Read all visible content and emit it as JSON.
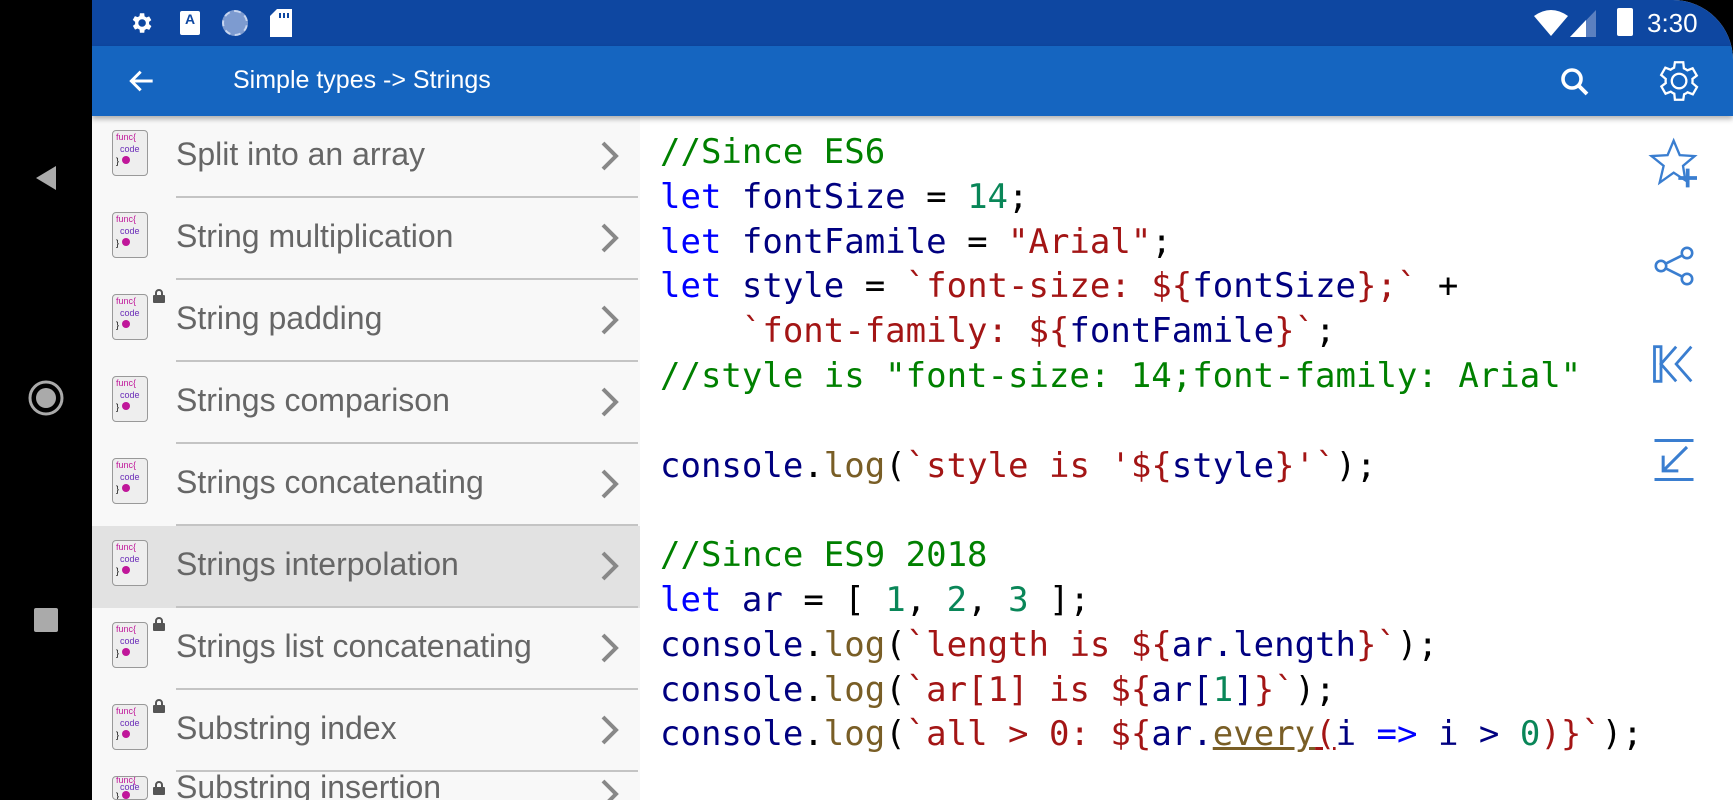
{
  "status_bar": {
    "time": "3:30",
    "icons": [
      "settings-icon",
      "text-a-icon",
      "sync-icon",
      "sd-card-icon",
      "wifi-icon",
      "signal-icon",
      "battery-icon"
    ]
  },
  "toolbar": {
    "title": "Simple types -> Strings",
    "icons": [
      "back-arrow-icon",
      "search-icon",
      "settings-gear-icon"
    ]
  },
  "list": {
    "items": [
      {
        "label": "Split into an array",
        "locked": false
      },
      {
        "label": "String multiplication",
        "locked": false
      },
      {
        "label": "String padding",
        "locked": true
      },
      {
        "label": "Strings comparison",
        "locked": false
      },
      {
        "label": "Strings concatenating",
        "locked": false
      },
      {
        "label": "Strings interpolation",
        "locked": false,
        "selected": true
      },
      {
        "label": "Strings list concatenating",
        "locked": true
      },
      {
        "label": "Substring index",
        "locked": true
      },
      {
        "label": "Substring insertion",
        "locked": true
      }
    ],
    "icon_text": {
      "l1": "func{",
      "l2": "code",
      "l3": "}"
    }
  },
  "code": {
    "lines": [
      [
        [
          "//Since ES6",
          "c"
        ]
      ],
      [
        [
          "let ",
          "k"
        ],
        [
          "fontSize",
          "v"
        ],
        [
          " = ",
          "p"
        ],
        [
          "14",
          "n"
        ],
        [
          ";",
          "p"
        ]
      ],
      [
        [
          "let ",
          "k"
        ],
        [
          "fontFamile",
          "v"
        ],
        [
          " = ",
          "p"
        ],
        [
          "\"Arial\"",
          "s"
        ],
        [
          ";",
          "p"
        ]
      ],
      [
        [
          "let ",
          "k"
        ],
        [
          "style",
          "v"
        ],
        [
          " = ",
          "p"
        ],
        [
          "`font-size: ${",
          "s"
        ],
        [
          "fontSize",
          "v"
        ],
        [
          "};`",
          "s"
        ],
        [
          " +",
          "p"
        ]
      ],
      [
        [
          "    ",
          "p"
        ],
        [
          "`font-family: ${",
          "s"
        ],
        [
          "fontFamile",
          "v"
        ],
        [
          "}`",
          "s"
        ],
        [
          ";",
          "p"
        ]
      ],
      [
        [
          "//style is \"font-size: 14;font-family: Arial\"",
          "c"
        ]
      ],
      [],
      [
        [
          "console",
          "v"
        ],
        [
          ".",
          "p"
        ],
        [
          "log",
          "f"
        ],
        [
          "(",
          "p"
        ],
        [
          "`style is '${",
          "s"
        ],
        [
          "style",
          "v"
        ],
        [
          "}'`",
          "s"
        ],
        [
          ");",
          "p"
        ]
      ],
      [],
      [
        [
          "//Since ES9 2018",
          "c"
        ]
      ],
      [
        [
          "let ",
          "k"
        ],
        [
          "ar",
          "v"
        ],
        [
          " = [ ",
          "p"
        ],
        [
          "1",
          "n"
        ],
        [
          ", ",
          "p"
        ],
        [
          "2",
          "n"
        ],
        [
          ", ",
          "p"
        ],
        [
          "3",
          "n"
        ],
        [
          " ];",
          "p"
        ]
      ],
      [
        [
          "console",
          "v"
        ],
        [
          ".",
          "p"
        ],
        [
          "log",
          "f"
        ],
        [
          "(",
          "p"
        ],
        [
          "`length is ${",
          "s"
        ],
        [
          "ar.length",
          "v"
        ],
        [
          "}`",
          "s"
        ],
        [
          ");",
          "p"
        ]
      ],
      [
        [
          "console",
          "v"
        ],
        [
          ".",
          "p"
        ],
        [
          "log",
          "f"
        ],
        [
          "(",
          "p"
        ],
        [
          "`ar[1] is ${",
          "s"
        ],
        [
          "ar[",
          "v"
        ],
        [
          "1",
          "n"
        ],
        [
          "]",
          "v"
        ],
        [
          "}`",
          "s"
        ],
        [
          ");",
          "p"
        ]
      ],
      [
        [
          "console",
          "v"
        ],
        [
          ".",
          "p"
        ],
        [
          "log",
          "f"
        ],
        [
          "(",
          "p"
        ],
        [
          "`all > 0: ${",
          "s"
        ],
        [
          "ar.",
          "v"
        ],
        [
          "every",
          "f u"
        ],
        [
          "(",
          "s u"
        ],
        [
          "i ",
          "v"
        ],
        [
          "=>",
          "k"
        ],
        [
          " i > ",
          "v"
        ],
        [
          "0",
          "n"
        ],
        [
          ")}`",
          "s"
        ],
        [
          ");",
          "p"
        ]
      ]
    ]
  },
  "side_actions": [
    "add-favorite-icon",
    "share-icon",
    "first-page-icon",
    "collapse-icon"
  ],
  "colors": {
    "status": "#0e47a1",
    "toolbar": "#1565c0",
    "icon_blue": "#3a7ed0",
    "comment": "#008000",
    "keyword": "#0000ff",
    "string": "#a31515"
  }
}
